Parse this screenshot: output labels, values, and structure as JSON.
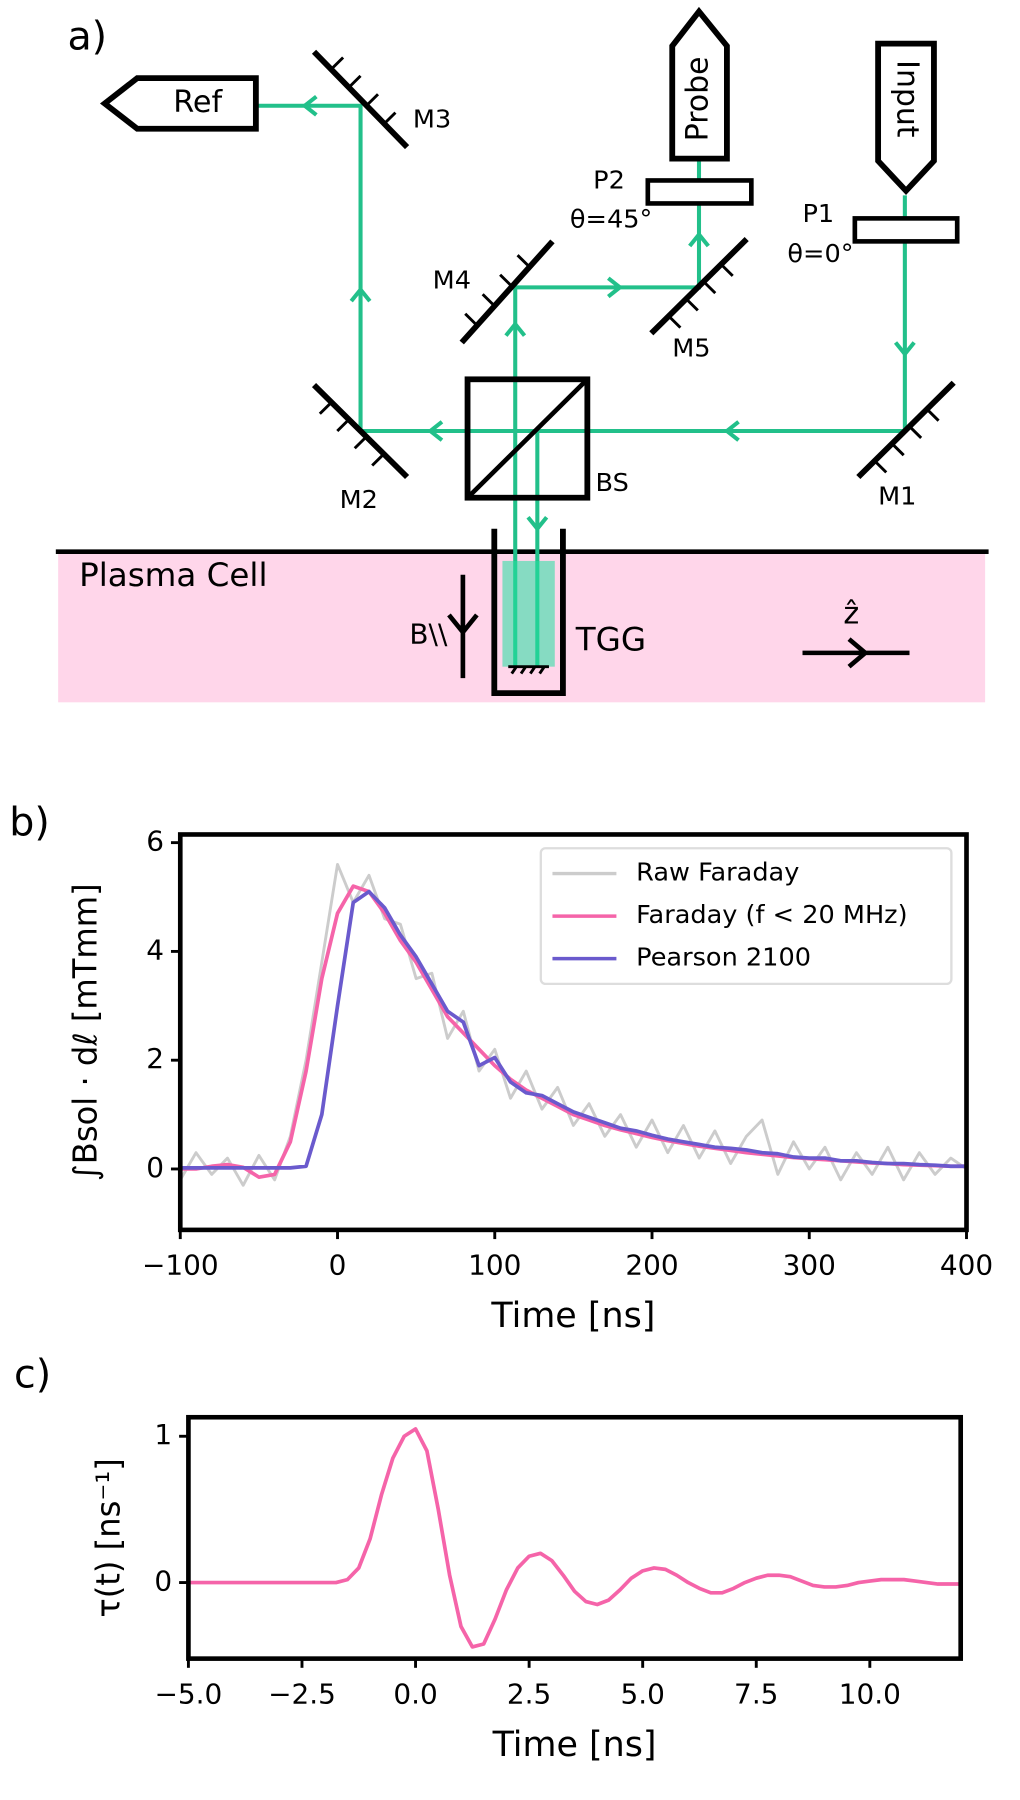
{
  "diagram": {
    "panel_label": "a)",
    "ref": "Ref",
    "m3": "M3",
    "probe": "Probe",
    "input": "Input",
    "p2": "P2",
    "p2_angle": "θ=45°",
    "p1": "P1",
    "p1_angle": "θ=0°",
    "m4": "M4",
    "m5": "M5",
    "m2": "M2",
    "bs": "BS",
    "m1": "M1",
    "plasma_cell": "Plasma Cell",
    "b_field": "B\\\\",
    "tgg": "TGG",
    "z_axis": "ẑ"
  },
  "chart_data": [
    {
      "type": "line",
      "panel_label": "b)",
      "xlabel": "Time [ns]",
      "ylabel": "∫Bsol · dℓ [mTmm]",
      "legend": "upper right",
      "xlim": [
        -100,
        400
      ],
      "ylim": [
        -1.12,
        6.15
      ],
      "xticks": [
        {
          "value": -100,
          "label": "−100"
        },
        0,
        100,
        200,
        300,
        400
      ],
      "yticks": [
        0,
        2,
        4,
        6
      ],
      "x": [
        -100,
        -90,
        -80,
        -70,
        -60,
        -50,
        -40,
        -30,
        -20,
        -10,
        0,
        10,
        20,
        30,
        40,
        50,
        60,
        70,
        80,
        90,
        100,
        110,
        120,
        130,
        140,
        150,
        160,
        170,
        180,
        190,
        200,
        210,
        220,
        230,
        240,
        250,
        260,
        270,
        280,
        290,
        300,
        310,
        320,
        330,
        340,
        350,
        360,
        370,
        380,
        390,
        400
      ],
      "series": [
        {
          "name": "Raw Faraday",
          "color": "#cccccc",
          "values": [
            -0.2,
            0.3,
            -0.1,
            0.2,
            -0.3,
            0.25,
            -0.2,
            0.6,
            2.0,
            3.8,
            5.6,
            4.9,
            5.4,
            4.6,
            4.5,
            3.5,
            3.6,
            2.4,
            2.9,
            1.8,
            2.2,
            1.3,
            1.8,
            1.1,
            1.5,
            0.8,
            1.2,
            0.6,
            1.0,
            0.4,
            0.9,
            0.3,
            0.8,
            0.2,
            0.7,
            0.1,
            0.6,
            0.9,
            -0.1,
            0.5,
            0.0,
            0.4,
            -0.2,
            0.3,
            -0.1,
            0.4,
            -0.2,
            0.3,
            -0.1,
            0.2,
            0.0
          ]
        },
        {
          "name": "Faraday (f < 20 MHz)",
          "color": "#f564a9",
          "values": [
            0,
            0,
            0.05,
            0.08,
            0.03,
            -0.15,
            -0.1,
            0.5,
            1.8,
            3.5,
            4.7,
            5.2,
            5.1,
            4.7,
            4.2,
            3.8,
            3.3,
            2.8,
            2.5,
            2.2,
            1.9,
            1.65,
            1.45,
            1.3,
            1.15,
            1.0,
            0.9,
            0.8,
            0.72,
            0.65,
            0.58,
            0.52,
            0.47,
            0.42,
            0.38,
            0.34,
            0.3,
            0.27,
            0.24,
            0.21,
            0.19,
            0.17,
            0.15,
            0.13,
            0.11,
            0.1,
            0.08,
            0.07,
            0.06,
            0.05,
            0.05
          ]
        },
        {
          "name": "Pearson 2100",
          "color": "#6a5acd",
          "values": [
            0.02,
            0.02,
            0.02,
            0.02,
            0.02,
            0.02,
            0.02,
            0.02,
            0.05,
            1.0,
            3.0,
            4.9,
            5.1,
            4.8,
            4.3,
            3.9,
            3.4,
            2.9,
            2.7,
            1.9,
            2.05,
            1.6,
            1.4,
            1.35,
            1.2,
            1.05,
            0.95,
            0.85,
            0.75,
            0.7,
            0.62,
            0.55,
            0.5,
            0.45,
            0.4,
            0.38,
            0.35,
            0.3,
            0.28,
            0.22,
            0.2,
            0.2,
            0.15,
            0.15,
            0.12,
            0.1,
            0.1,
            0.08,
            0.07,
            0.05,
            0.05
          ]
        }
      ]
    },
    {
      "type": "line",
      "panel_label": "c)",
      "xlabel": "Time [ns]",
      "ylabel": "τ(t) [ns⁻¹]",
      "xlim": [
        -5,
        12
      ],
      "ylim": [
        -0.52,
        1.13
      ],
      "xticks": [
        {
          "value": -5,
          "label": "−5.0"
        },
        {
          "value": -2.5,
          "label": "−2.5"
        },
        {
          "value": 0,
          "label": "0.0"
        },
        2.5,
        {
          "value": 5,
          "label": "5.0"
        },
        7.5,
        {
          "value": 10,
          "label": "10.0"
        }
      ],
      "yticks": [
        0,
        1
      ],
      "x": [
        -5,
        -4.75,
        -4.5,
        -4.25,
        -4,
        -3.75,
        -3.5,
        -3.25,
        -3,
        -2.75,
        -2.5,
        -2.25,
        -2,
        -1.75,
        -1.5,
        -1.25,
        -1,
        -0.75,
        -0.5,
        -0.25,
        0,
        0.25,
        0.5,
        0.75,
        1,
        1.25,
        1.5,
        1.75,
        2,
        2.25,
        2.5,
        2.75,
        3,
        3.25,
        3.5,
        3.75,
        4,
        4.25,
        4.5,
        4.75,
        5,
        5.25,
        5.5,
        5.75,
        6,
        6.25,
        6.5,
        6.75,
        7,
        7.25,
        7.5,
        7.75,
        8,
        8.25,
        8.5,
        8.75,
        9,
        9.25,
        9.5,
        9.75,
        10,
        10.25,
        10.5,
        10.75,
        11,
        11.25,
        11.5,
        11.75,
        12
      ],
      "series": [
        {
          "color": "#f564a9",
          "values": [
            0,
            0,
            0,
            0,
            0,
            0,
            0,
            0,
            0,
            0,
            0,
            0,
            0,
            0,
            0.02,
            0.1,
            0.3,
            0.6,
            0.85,
            1.0,
            1.05,
            0.9,
            0.5,
            0.05,
            -0.3,
            -0.44,
            -0.42,
            -0.25,
            -0.05,
            0.1,
            0.18,
            0.2,
            0.15,
            0.05,
            -0.06,
            -0.13,
            -0.15,
            -0.12,
            -0.05,
            0.03,
            0.08,
            0.1,
            0.09,
            0.05,
            0.0,
            -0.04,
            -0.07,
            -0.07,
            -0.04,
            0.0,
            0.03,
            0.05,
            0.05,
            0.04,
            0.01,
            -0.02,
            -0.03,
            -0.03,
            -0.02,
            0.0,
            0.01,
            0.02,
            0.02,
            0.02,
            0.01,
            0.0,
            -0.01,
            -0.01,
            -0.01
          ]
        }
      ]
    }
  ]
}
